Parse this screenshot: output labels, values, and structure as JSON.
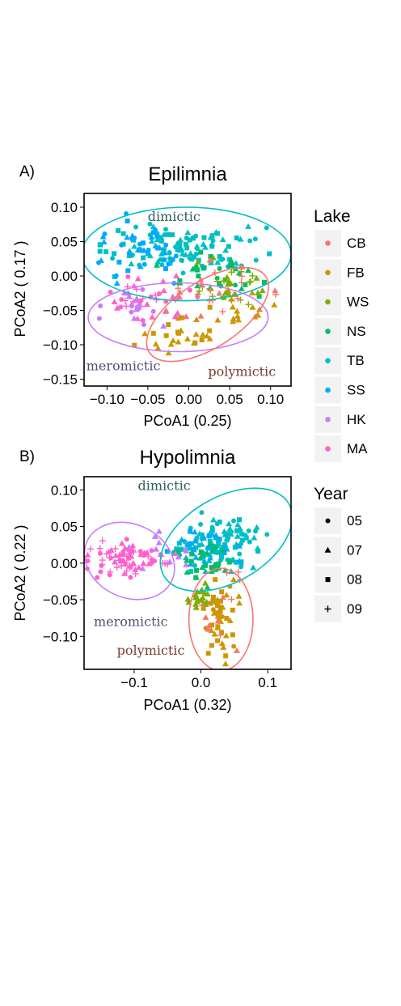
{
  "colors": {
    "CB": "#F8766D",
    "FB": "#CD9600",
    "WS": "#7CAE00",
    "NS": "#00BE67",
    "TB": "#00BFC4",
    "SS": "#00A9FF",
    "HK": "#C77CFF",
    "MA": "#FF61CC",
    "ann_dimictic": "#2a5e5a",
    "ann_meromictic": "#5b4a78",
    "ann_polymictic": "#7a3b30"
  },
  "legend": {
    "lake": {
      "title": "Lake",
      "items": [
        "CB",
        "FB",
        "WS",
        "NS",
        "TB",
        "SS",
        "HK",
        "MA"
      ]
    },
    "year": {
      "title": "Year",
      "items": [
        {
          "label": "05",
          "shape": "circle"
        },
        {
          "label": "07",
          "shape": "triangle"
        },
        {
          "label": "08",
          "shape": "square"
        },
        {
          "label": "09",
          "shape": "plus"
        }
      ]
    }
  },
  "chart_data": [
    {
      "type": "scatter",
      "panel_label": "A)",
      "title": "Epilimnia",
      "xlabel": "PCoA1 (0.25)",
      "ylabel": "PCoA2 ( 0.17 )",
      "xlim": [
        -0.128,
        0.125
      ],
      "ylim": [
        -0.16,
        0.12
      ],
      "xticks": [
        -0.1,
        -0.05,
        0.0,
        0.05,
        0.1
      ],
      "xtick_labels": [
        "−0.10",
        "−0.05",
        "0.00",
        "0.05",
        "0.10"
      ],
      "yticks": [
        0.1,
        0.05,
        0.0,
        -0.05,
        -0.1,
        -0.15
      ],
      "ytick_labels": [
        "0.10",
        "0.05",
        "0.00",
        "−0.05",
        "−0.10",
        "−0.15"
      ],
      "ellipses": [
        {
          "group": "dimictic",
          "color": "TB",
          "center": [
            -0.003,
            0.032
          ],
          "rx": 0.128,
          "ry": 0.068,
          "angle": 0
        },
        {
          "group": "meromictic",
          "color": "HK",
          "center": [
            -0.013,
            -0.06
          ],
          "rx": 0.11,
          "ry": 0.05,
          "angle": 0
        },
        {
          "group": "polymictic",
          "color": "CB",
          "center": [
            0.023,
            -0.056
          ],
          "rx": 0.085,
          "ry": 0.048,
          "angle": 33
        }
      ],
      "annotations": [
        {
          "text": "dimictic",
          "x": -0.018,
          "y": 0.08,
          "color": "ann_dimictic"
        },
        {
          "text": "meromictic",
          "x": -0.08,
          "y": -0.137,
          "color": "ann_meromictic"
        },
        {
          "text": "polymictic",
          "x": 0.065,
          "y": -0.145,
          "color": "ann_polymictic"
        }
      ],
      "clusters": [
        {
          "lake": "TB",
          "shapes": [
            "triangle",
            "square",
            "circle"
          ],
          "n": 110,
          "center": [
            -0.005,
            0.04
          ],
          "spread": [
            0.045,
            0.018
          ],
          "seed": 11
        },
        {
          "lake": "SS",
          "shapes": [
            "triangle",
            "square",
            "circle"
          ],
          "n": 45,
          "center": [
            -0.07,
            0.04
          ],
          "spread": [
            0.028,
            0.022
          ],
          "seed": 12
        },
        {
          "lake": "NS",
          "shapes": [
            "triangle",
            "square",
            "circle"
          ],
          "n": 30,
          "center": [
            0.03,
            0.0
          ],
          "spread": [
            0.03,
            0.015
          ],
          "seed": 13
        },
        {
          "lake": "WS",
          "shapes": [
            "triangle",
            "plus"
          ],
          "n": 30,
          "center": [
            0.05,
            -0.015
          ],
          "spread": [
            0.025,
            0.018
          ],
          "seed": 14
        },
        {
          "lake": "FB",
          "shapes": [
            "triangle",
            "square"
          ],
          "n": 30,
          "center": [
            -0.01,
            -0.08
          ],
          "spread": [
            0.025,
            0.015
          ],
          "seed": 15
        },
        {
          "lake": "FB",
          "shapes": [
            "triangle"
          ],
          "n": 15,
          "center": [
            0.07,
            -0.04
          ],
          "spread": [
            0.015,
            0.015
          ],
          "seed": 16
        },
        {
          "lake": "MA",
          "shapes": [
            "plus",
            "triangle",
            "circle"
          ],
          "n": 40,
          "center": [
            -0.05,
            -0.03
          ],
          "spread": [
            0.03,
            0.015
          ],
          "seed": 17
        },
        {
          "lake": "HK",
          "shapes": [
            "triangle",
            "circle"
          ],
          "n": 15,
          "center": [
            -0.06,
            -0.04
          ],
          "spread": [
            0.025,
            0.015
          ],
          "seed": 18
        },
        {
          "lake": "CB",
          "shapes": [
            "triangle",
            "plus"
          ],
          "n": 20,
          "center": [
            0.04,
            -0.02
          ],
          "spread": [
            0.03,
            0.02
          ],
          "seed": 19
        }
      ]
    },
    {
      "type": "scatter",
      "panel_label": "B)",
      "title": "Hypolimnia",
      "xlabel": "PCoA1 (0.32)",
      "ylabel": "PCoA2 ( 0.22 )",
      "xlim": [
        -0.175,
        0.135
      ],
      "ylim": [
        -0.145,
        0.118
      ],
      "xticks": [
        -0.1,
        0.0,
        0.1
      ],
      "xtick_labels": [
        "−0.1",
        "0.0",
        "0.1"
      ],
      "yticks": [
        0.1,
        0.05,
        0.0,
        -0.05,
        -0.1
      ],
      "ytick_labels": [
        "0.10",
        "0.05",
        "0.00",
        "−0.05",
        "−0.10"
      ],
      "ellipses": [
        {
          "group": "dimictic",
          "color": "TB",
          "center": [
            0.038,
            0.032
          ],
          "rx": 0.108,
          "ry": 0.058,
          "angle": 30
        },
        {
          "group": "meromictic",
          "color": "HK",
          "center": [
            -0.107,
            0.003
          ],
          "rx": 0.07,
          "ry": 0.05,
          "angle": -25
        },
        {
          "group": "polymictic",
          "color": "CB",
          "center": [
            0.03,
            -0.077
          ],
          "rx": 0.048,
          "ry": 0.07,
          "angle": 0
        }
      ],
      "annotations": [
        {
          "text": "dimictic",
          "x": -0.055,
          "y": 0.1,
          "color": "ann_dimictic"
        },
        {
          "text": "meromictic",
          "x": -0.105,
          "y": -0.086,
          "color": "ann_meromictic"
        },
        {
          "text": "polymictic",
          "x": -0.075,
          "y": -0.125,
          "color": "ann_polymictic"
        }
      ],
      "clusters": [
        {
          "lake": "TB",
          "shapes": [
            "triangle",
            "square",
            "circle"
          ],
          "n": 110,
          "center": [
            0.03,
            0.03
          ],
          "spread": [
            0.03,
            0.018
          ],
          "seed": 21
        },
        {
          "lake": "SS",
          "shapes": [
            "square",
            "triangle"
          ],
          "n": 25,
          "center": [
            0.0,
            0.02
          ],
          "spread": [
            0.025,
            0.015
          ],
          "seed": 22
        },
        {
          "lake": "NS",
          "shapes": [
            "triangle",
            "square"
          ],
          "n": 30,
          "center": [
            0.0,
            0.0
          ],
          "spread": [
            0.02,
            0.015
          ],
          "seed": 23
        },
        {
          "lake": "WS",
          "shapes": [
            "triangle"
          ],
          "n": 20,
          "center": [
            -0.003,
            -0.045
          ],
          "spread": [
            0.012,
            0.01
          ],
          "seed": 24
        },
        {
          "lake": "FB",
          "shapes": [
            "triangle",
            "square",
            "circle"
          ],
          "n": 45,
          "center": [
            0.03,
            -0.08
          ],
          "spread": [
            0.012,
            0.025
          ],
          "seed": 25
        },
        {
          "lake": "MA",
          "shapes": [
            "triangle",
            "plus",
            "circle"
          ],
          "n": 75,
          "center": [
            -0.115,
            0.005
          ],
          "spread": [
            0.03,
            0.012
          ],
          "seed": 26
        },
        {
          "lake": "HK",
          "shapes": [
            "triangle"
          ],
          "n": 12,
          "center": [
            -0.05,
            0.02
          ],
          "spread": [
            0.025,
            0.015
          ],
          "seed": 27
        },
        {
          "lake": "CB",
          "shapes": [
            "triangle",
            "plus"
          ],
          "n": 12,
          "center": [
            0.03,
            -0.06
          ],
          "spread": [
            0.018,
            0.03
          ],
          "seed": 28
        }
      ]
    }
  ]
}
